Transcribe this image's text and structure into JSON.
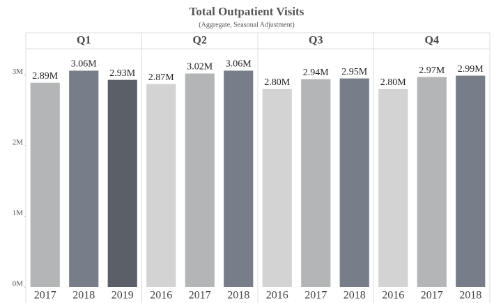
{
  "chart_data": {
    "type": "bar",
    "title": "Total Outpatient Visits",
    "subtitle": "(Aggregate, Seasonal Adjustment)",
    "ylim": [
      0,
      3370000
    ],
    "yticks": [
      {
        "value": 0,
        "label": "0M"
      },
      {
        "value": 1000000,
        "label": "1M"
      },
      {
        "value": 2000000,
        "label": "2M"
      },
      {
        "value": 3000000,
        "label": "3M"
      }
    ],
    "panels": [
      {
        "name": "Q1",
        "categories": [
          "2017",
          "2018",
          "2019"
        ],
        "values": [
          2890000,
          3060000,
          2930000
        ],
        "value_labels": [
          "2.89M",
          "3.06M",
          "2.93M"
        ],
        "colors": [
          "#b3b5b6",
          "#777e8a",
          "#5b5f68"
        ]
      },
      {
        "name": "Q2",
        "categories": [
          "2016",
          "2017",
          "2018"
        ],
        "values": [
          2870000,
          3020000,
          3060000
        ],
        "value_labels": [
          "2.87M",
          "3.02M",
          "3.06M"
        ],
        "colors": [
          "#d3d3d3",
          "#b3b5b6",
          "#777e8a"
        ]
      },
      {
        "name": "Q3",
        "categories": [
          "2016",
          "2017",
          "2018"
        ],
        "values": [
          2800000,
          2940000,
          2950000
        ],
        "value_labels": [
          "2.80M",
          "2.94M",
          "2.95M"
        ],
        "colors": [
          "#d3d3d3",
          "#b3b5b6",
          "#777e8a"
        ]
      },
      {
        "name": "Q4",
        "categories": [
          "2016",
          "2017",
          "2018"
        ],
        "values": [
          2800000,
          2970000,
          2990000
        ],
        "value_labels": [
          "2.80M",
          "2.97M",
          "2.99M"
        ],
        "colors": [
          "#d3d3d3",
          "#b3b5b6",
          "#777e8a"
        ]
      }
    ]
  }
}
